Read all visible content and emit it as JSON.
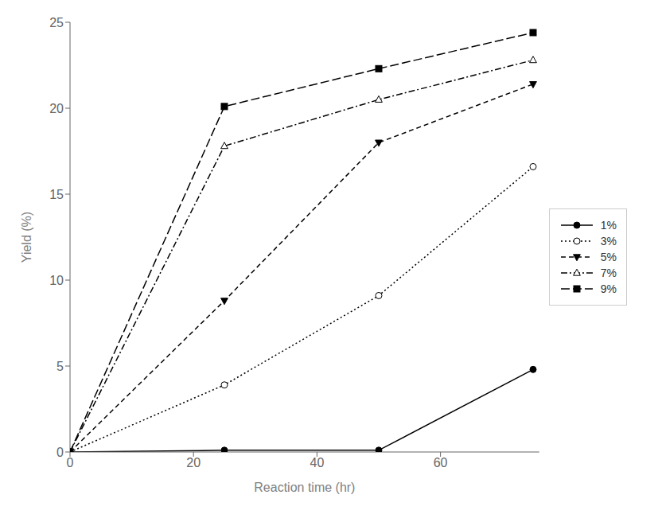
{
  "chart_data": {
    "type": "line",
    "xlabel": "Reaction time (hr)",
    "ylabel": "Yield (%)",
    "x": [
      0,
      25,
      50,
      75
    ],
    "xlim": [
      0,
      76
    ],
    "xticks": [
      0,
      20,
      40,
      60
    ],
    "ylim": [
      0,
      25
    ],
    "yticks": [
      0,
      5,
      10,
      15,
      20,
      25
    ],
    "grid": false,
    "legend": "right",
    "series": [
      {
        "name": "1%",
        "color": "black",
        "marker": "circle",
        "line_style": "solid",
        "values": [
          0,
          0.1,
          0.1,
          4.8
        ]
      },
      {
        "name": "3%",
        "color": "black",
        "marker": "circle-open",
        "line_style": "dotted",
        "values": [
          0,
          3.9,
          9.1,
          16.6
        ]
      },
      {
        "name": "5%",
        "color": "black",
        "marker": "triangle-down",
        "line_style": "dashed",
        "values": [
          0,
          8.8,
          18.0,
          21.4
        ]
      },
      {
        "name": "7%",
        "color": "black",
        "marker": "triangle-up-open",
        "line_style": "dashdot",
        "values": [
          0,
          17.8,
          20.5,
          22.8
        ]
      },
      {
        "name": "9%",
        "color": "black",
        "marker": "square",
        "line_style": "longdashed",
        "values": [
          0,
          20.1,
          22.3,
          24.4
        ]
      }
    ]
  }
}
